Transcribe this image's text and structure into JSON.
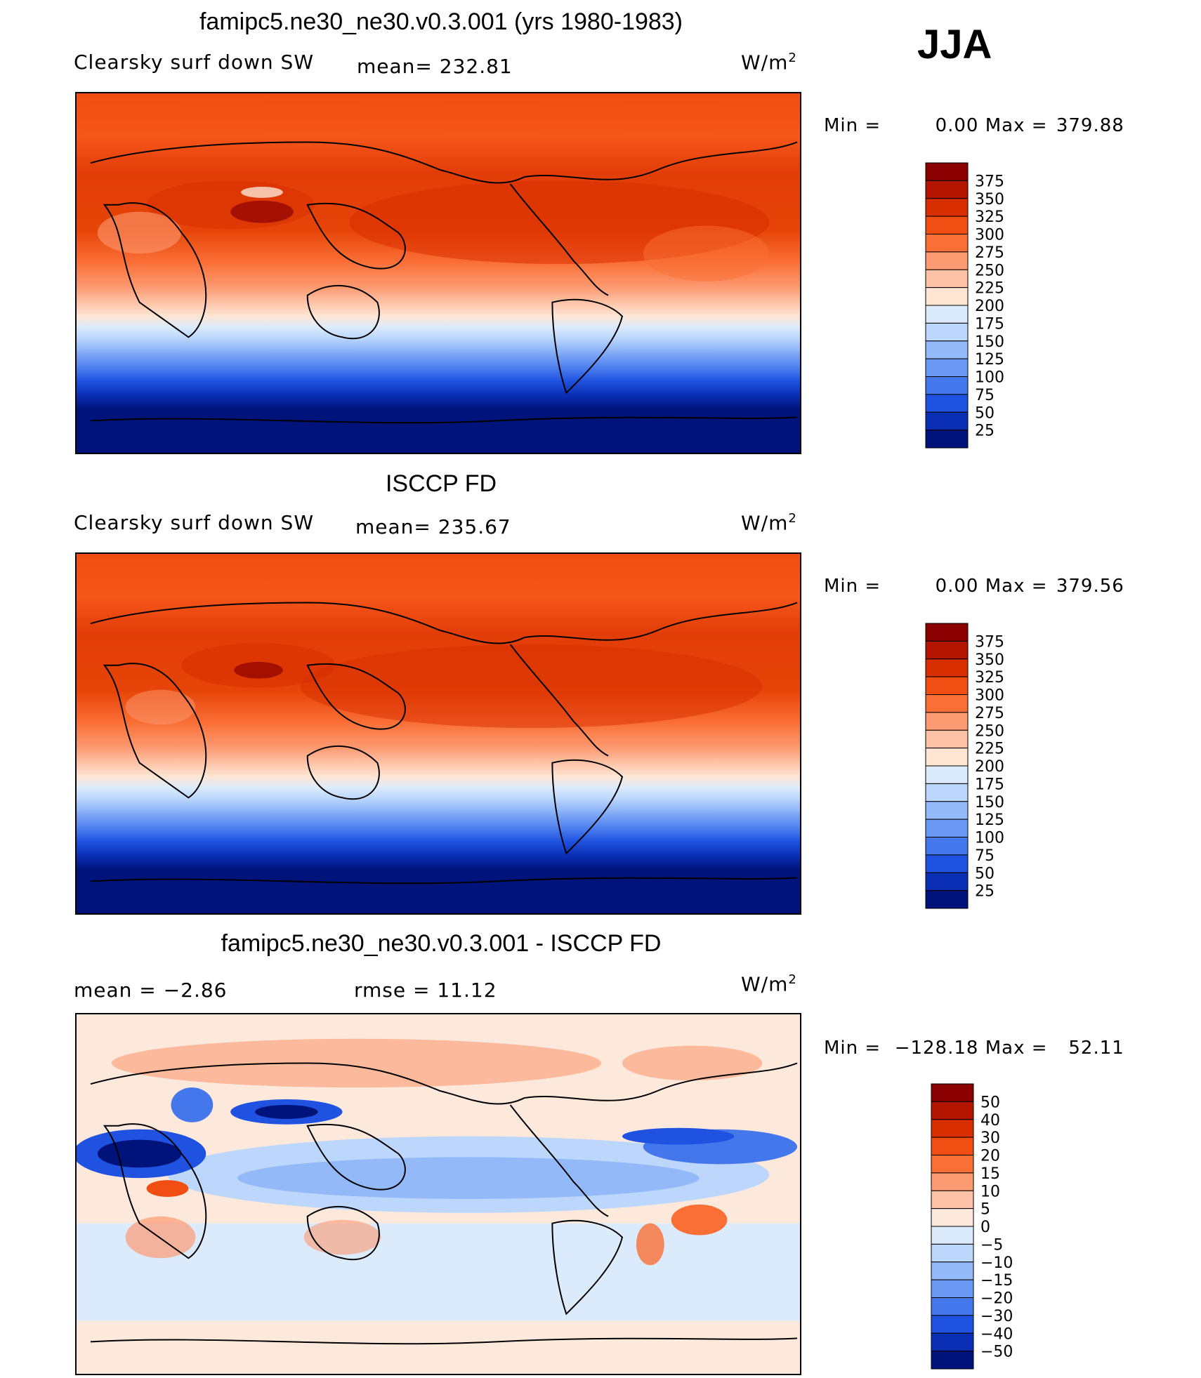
{
  "season": "JJA",
  "panels": [
    {
      "title": "famipc5.ne30_ne30.v0.3.001 (yrs 1980-1983)",
      "left_label": "Clearsky  surf  down  SW",
      "center_label": "mean=  232.81",
      "units_base": "W/m",
      "units_exp": "2",
      "min_label": "Min  =",
      "min_value": "0.00",
      "max_label": "Max  =",
      "max_value": "379.88",
      "scheme": "abs"
    },
    {
      "title": "ISCCP FD",
      "left_label": "Clearsky  surf  down  SW",
      "center_label": "mean=  235.67",
      "units_base": "W/m",
      "units_exp": "2",
      "min_label": "Min  =",
      "min_value": "0.00",
      "max_label": "Max  =",
      "max_value": "379.56",
      "scheme": "abs"
    },
    {
      "title": "famipc5.ne30_ne30.v0.3.001 - ISCCP FD",
      "left_label": "mean  =    −2.86",
      "center_label": "rmse  =    11.12",
      "units_base": "W/m",
      "units_exp": "2",
      "min_label": "Min  =",
      "min_value": "−128.18",
      "max_label": "Max  =",
      "max_value": "52.11",
      "scheme": "diff"
    }
  ],
  "colorbars": {
    "abs": {
      "labels": [
        "375",
        "350",
        "325",
        "300",
        "275",
        "250",
        "225",
        "200",
        "175",
        "150",
        "125",
        "100",
        "75",
        "50",
        "25"
      ],
      "colors": [
        "#8b0000",
        "#b31500",
        "#d82e00",
        "#f04e12",
        "#fa6f36",
        "#fc9a72",
        "#fdc2a5",
        "#fde5d4",
        "#dcebfb",
        "#bcd7fb",
        "#93b9f8",
        "#6b98f3",
        "#4577ec",
        "#1f52e0",
        "#0a2fb4",
        "#00137a"
      ]
    },
    "diff": {
      "labels": [
        "50",
        "40",
        "30",
        "20",
        "15",
        "10",
        "5",
        "0",
        "−5",
        "−10",
        "−15",
        "−20",
        "−30",
        "−40",
        "−50"
      ],
      "colors": [
        "#8b0000",
        "#b31500",
        "#d82e00",
        "#f04e12",
        "#fa6f36",
        "#fc9a72",
        "#fdc2a5",
        "#fde9dc",
        "#dcebfb",
        "#bcd7fb",
        "#93b9f8",
        "#6b98f3",
        "#4577ec",
        "#1f52e0",
        "#0a2fb4",
        "#00137a"
      ]
    }
  }
}
